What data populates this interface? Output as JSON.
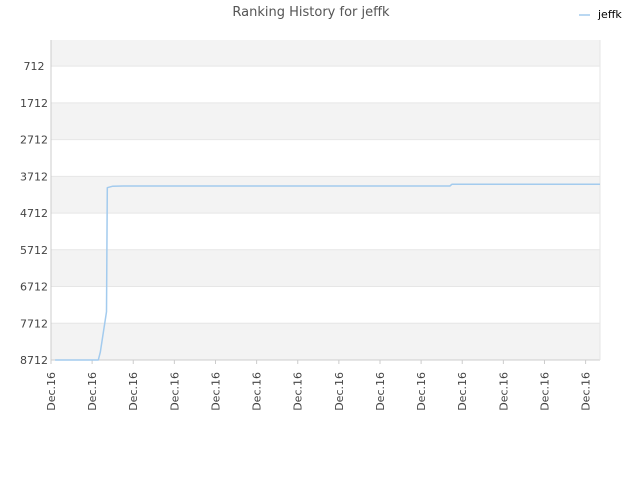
{
  "chart_data": {
    "type": "line",
    "title": "Ranking History for jeffk",
    "xlabel": "",
    "ylabel": "",
    "x_tick_labels": [
      "Dec.16",
      "Dec.16",
      "Dec.16",
      "Dec.16",
      "Dec.16",
      "Dec.16",
      "Dec.16",
      "Dec.16",
      "Dec.16",
      "Dec.16",
      "Dec.16",
      "Dec.16",
      "Dec.16",
      "Dec.16"
    ],
    "y_tick_labels": [
      "712",
      "1712",
      "2712",
      "3712",
      "4712",
      "5712",
      "6712",
      "7712",
      "8712"
    ],
    "y_ticks": [
      712,
      1712,
      2712,
      3712,
      4712,
      5712,
      6712,
      7712,
      8712
    ],
    "ylim": [
      8712,
      0
    ],
    "y_axis_inverted": true,
    "x_range": [
      0,
      13.35
    ],
    "grid": true,
    "legend_position": "top-right",
    "series": [
      {
        "name": "jeffk",
        "color": "#a3cbee",
        "x": [
          0.1,
          1.15,
          1.2,
          1.35,
          1.37,
          1.5,
          1.75,
          8.6,
          9.7,
          9.75,
          13.35
        ],
        "y": [
          8712,
          8712,
          8500,
          7400,
          4020,
          3980,
          3975,
          3975,
          3975,
          3925,
          3925
        ]
      }
    ]
  },
  "colors": {
    "band_light": "#f3f3f3",
    "band_white": "#ffffff",
    "grid": "#e6e6e6",
    "axis": "#cccccc",
    "line": "#a3cbee"
  }
}
